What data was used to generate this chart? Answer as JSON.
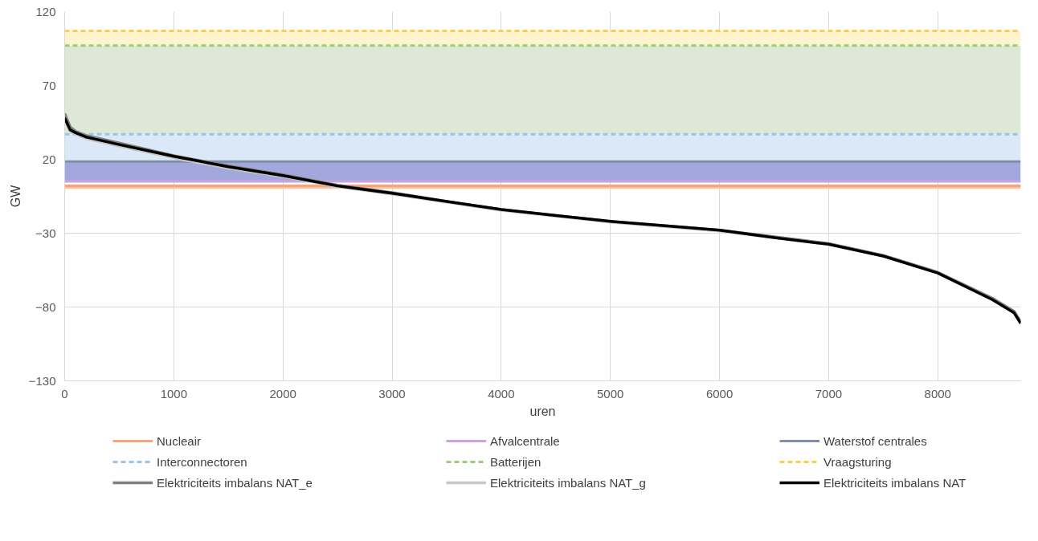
{
  "chart_data": {
    "type": "line",
    "xlabel": "uren",
    "ylabel": "GW",
    "xlim": [
      0,
      8760
    ],
    "ylim": [
      -130,
      120
    ],
    "xticks": [
      0,
      1000,
      2000,
      3000,
      4000,
      5000,
      6000,
      7000,
      8000
    ],
    "yticks": [
      -130,
      -80,
      -30,
      20,
      70,
      120
    ],
    "grid": true,
    "legend": "bottom",
    "line_style": "solid",
    "marker": "none",
    "bands": [
      {
        "axis": "y",
        "from": 0,
        "to": 3,
        "color": "#f6c3a4"
      },
      {
        "axis": "y",
        "from": 5,
        "to": 18.5,
        "color": "#a3a8dc"
      },
      {
        "axis": "y",
        "from": 18.5,
        "to": 37,
        "color": "#dae8f8"
      },
      {
        "axis": "y",
        "from": 37,
        "to": 97,
        "color": "#dee8d6"
      },
      {
        "axis": "y",
        "from": 97,
        "to": 107,
        "color": "#fdf3cc"
      }
    ],
    "ref_lines": [
      {
        "axis": "y",
        "value": 2,
        "label": "Nucleair",
        "color": "#f4a57c",
        "line_style": "solid"
      },
      {
        "axis": "y",
        "value": 5,
        "label": "Afvalcentrale",
        "color": "#c9a3e0",
        "line_style": "solid"
      },
      {
        "axis": "y",
        "value": 18.5,
        "label": "Waterstof centrales",
        "color": "#7f8faa",
        "line_style": "solid"
      },
      {
        "axis": "y",
        "value": 37,
        "label": "Interconnectoren",
        "color": "#9cc3ea",
        "line_style": "dashed"
      },
      {
        "axis": "y",
        "value": 97,
        "label": "Batterijen",
        "color": "#9ccd7a",
        "line_style": "dashed"
      },
      {
        "axis": "y",
        "value": 107,
        "label": "Vraagsturing",
        "color": "#f9cf4f",
        "line_style": "dashed"
      }
    ],
    "x": [
      0,
      50,
      100,
      200,
      500,
      1000,
      1500,
      2000,
      2500,
      2700,
      3000,
      3500,
      4000,
      4500,
      5000,
      5500,
      6000,
      6500,
      7000,
      7500,
      8000,
      8500,
      8700,
      8760
    ],
    "series": [
      {
        "name": "Elektriciteits imbalans NAT_e",
        "color": "#7f7f7f",
        "values": [
          51,
          42,
          39,
          36,
          31,
          22.5,
          15.5,
          9.5,
          2.5,
          0.5,
          -2.5,
          -8.5,
          -14,
          -18,
          -22,
          -25,
          -28,
          -32.5,
          -37,
          -45,
          -56.5,
          -74,
          -83,
          -90
        ]
      },
      {
        "name": "Elektriciteits imbalans NAT_g",
        "color": "#c8c8c8",
        "values": [
          47,
          39,
          37,
          34,
          29,
          21,
          14,
          8.5,
          1.5,
          -0.5,
          -3.5,
          -9,
          -14.5,
          -18.5,
          -22.5,
          -25.5,
          -28.5,
          -33,
          -37.5,
          -45.5,
          -57,
          -75,
          -84,
          -91
        ]
      },
      {
        "name": "Elektriciteits imbalans NAT",
        "color": "#000000",
        "values": [
          48,
          40,
          38,
          35,
          30,
          22,
          15,
          9,
          2,
          0,
          -3,
          -8.5,
          -14,
          -18,
          -22,
          -25,
          -28,
          -33,
          -37.5,
          -45.5,
          -57,
          -75,
          -84,
          -91
        ]
      }
    ]
  }
}
